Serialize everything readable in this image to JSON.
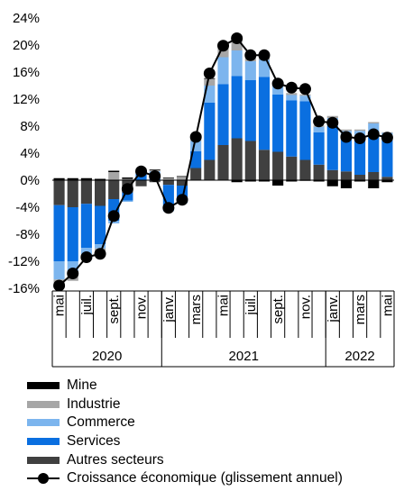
{
  "chart_data": {
    "type": "bar",
    "stacked": true,
    "categories": [
      "2020-05",
      "2020-06",
      "2020-07",
      "2020-08",
      "2020-09",
      "2020-10",
      "2020-11",
      "2020-12",
      "2021-01",
      "2021-02",
      "2021-03",
      "2021-04",
      "2021-05",
      "2021-06",
      "2021-07",
      "2021-08",
      "2021-09",
      "2021-10",
      "2021-11",
      "2021-12",
      "2022-01",
      "2022-02",
      "2022-03",
      "2022-04",
      "2022-05"
    ],
    "x_tick_labels": [
      "mai",
      "juil.",
      "sept.",
      "nov.",
      "janv.",
      "mars",
      "mai",
      "juil.",
      "sept.",
      "nov.",
      "janv.",
      "mars",
      "mai"
    ],
    "x_tick_positions": [
      0,
      2,
      4,
      6,
      8,
      10,
      12,
      14,
      16,
      18,
      20,
      22,
      24
    ],
    "x_group_labels": [
      {
        "label": "2020",
        "start": 0,
        "end": 7
      },
      {
        "label": "2021",
        "start": 8,
        "end": 19
      },
      {
        "label": "2022",
        "start": 20,
        "end": 24
      }
    ],
    "ylim": [
      -16,
      24
    ],
    "y_ticks": [
      -16,
      -12,
      -8,
      -4,
      0,
      4,
      8,
      12,
      16,
      20,
      24
    ],
    "y_tick_labels": [
      "-16%",
      "-12%",
      "-8%",
      "-4%",
      "0%",
      "4%",
      "8%",
      "12%",
      "16%",
      "20%",
      "24%"
    ],
    "series": [
      {
        "name": "Autres secteurs",
        "color": "#404040",
        "values": [
          -3.7,
          -4.0,
          -3.5,
          -3.8,
          -2.8,
          -1.8,
          -0.9,
          -0.3,
          -0.7,
          -0.8,
          1.8,
          3.0,
          5.2,
          6.2,
          5.8,
          4.5,
          4.2,
          3.5,
          3.0,
          2.3,
          1.5,
          1.3,
          0.8,
          1.2,
          0.5
        ]
      },
      {
        "name": "Services",
        "color": "#0A6FE0",
        "values": [
          -8.3,
          -8.0,
          -6.5,
          -5.7,
          -3.2,
          -1.2,
          1.2,
          0.5,
          -3.2,
          -2.2,
          2.5,
          8.5,
          9.0,
          9.2,
          9.0,
          10.8,
          8.5,
          8.3,
          8.7,
          4.8,
          6.5,
          5.2,
          5.3,
          6.0,
          5.6
        ]
      },
      {
        "name": "Commerce",
        "color": "#7CB5EE",
        "values": [
          -2.7,
          -2.1,
          -1.0,
          -0.6,
          -0.4,
          -0.2,
          0.2,
          0.8,
          -0.7,
          -0.4,
          1.5,
          2.5,
          4.0,
          3.8,
          2.8,
          2.5,
          1.5,
          0.8,
          0.8,
          0.8,
          1.2,
          0.8,
          1.2,
          1.2,
          0.9
        ]
      },
      {
        "name": "Industrie",
        "color": "#A6A6A6",
        "values": [
          -1.2,
          -0.8,
          -0.5,
          -0.4,
          1.2,
          0.2,
          0.2,
          0.2,
          0.3,
          0.5,
          0.8,
          1.0,
          2.0,
          1.5,
          0.8,
          0.6,
          0.3,
          0.3,
          0.2,
          0.2,
          0.3,
          0.2,
          0.2,
          0.2,
          0.1
        ]
      },
      {
        "name": "Mine",
        "color": "#000000",
        "values": [
          0.3,
          0.3,
          0.3,
          0.2,
          0.2,
          0.2,
          0.1,
          0.1,
          0.1,
          0.1,
          0.1,
          0.1,
          0.1,
          -0.3,
          -0.2,
          -0.2,
          -0.8,
          -0.2,
          -0.1,
          -0.2,
          -0.9,
          -1.2,
          -0.2,
          -1.2,
          -0.3
        ]
      }
    ],
    "line": {
      "name": "Croissance économique (glissement annuel)",
      "color": "#000000",
      "values": [
        -15.6,
        -13.8,
        -11.4,
        -10.9,
        -5.3,
        -1.3,
        1.3,
        0.6,
        -4.1,
        -2.9,
        6.4,
        15.8,
        19.9,
        21.0,
        18.5,
        18.5,
        14.3,
        13.7,
        13.5,
        8.7,
        8.5,
        6.4,
        6.2,
        6.8,
        6.3
      ]
    }
  },
  "legend": [
    {
      "label": "Mine",
      "color": "#000000",
      "kind": "bar"
    },
    {
      "label": "Industrie",
      "color": "#A6A6A6",
      "kind": "bar"
    },
    {
      "label": "Commerce",
      "color": "#7CB5EE",
      "kind": "bar"
    },
    {
      "label": "Services",
      "color": "#0A6FE0",
      "kind": "bar"
    },
    {
      "label": "Autres secteurs",
      "color": "#404040",
      "kind": "bar"
    },
    {
      "label": "Croissance économique (glissement annuel)",
      "color": "#000000",
      "kind": "line"
    }
  ]
}
